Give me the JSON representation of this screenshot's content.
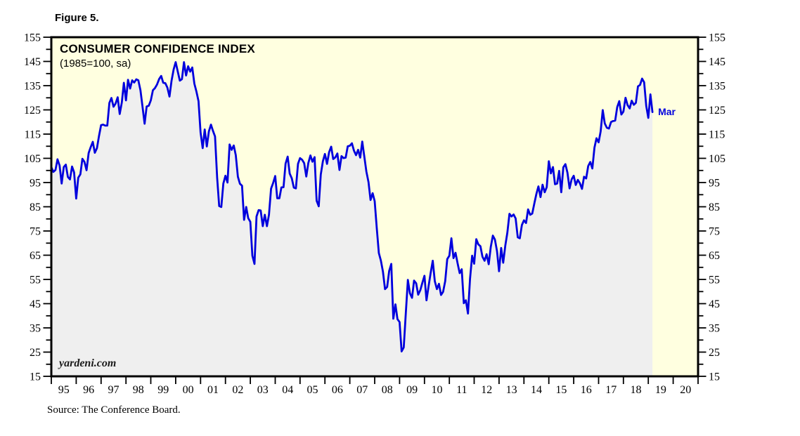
{
  "figure_label": "Figure 5.",
  "title": {
    "main": "CONSUMER CONFIDENCE INDEX",
    "sub": "(1985=100, sa)"
  },
  "watermark": "yardeni.com",
  "latest_label": "Mar",
  "source_note": "Source: The Conference Board.",
  "colors": {
    "plot_bg": "#ffffe0",
    "area_fill": "#efefef",
    "line": "#0000dd",
    "latest_label_color": "#0000dd",
    "axis": "#000000"
  },
  "chart_data": {
    "type": "line",
    "title": "CONSUMER CONFIDENCE INDEX",
    "subtitle": "(1985=100, sa)",
    "xlabel": "",
    "ylabel": "",
    "ylim": [
      15,
      155
    ],
    "y_tick_labels": [
      15,
      25,
      35,
      45,
      55,
      65,
      75,
      85,
      95,
      105,
      115,
      125,
      135,
      145,
      155
    ],
    "y_minor_step": 5,
    "x_range_years": [
      1995,
      2021
    ],
    "x_tick_labels": [
      "95",
      "96",
      "97",
      "98",
      "99",
      "00",
      "01",
      "02",
      "03",
      "04",
      "05",
      "06",
      "07",
      "08",
      "09",
      "10",
      "11",
      "12",
      "13",
      "14",
      "15",
      "16",
      "17",
      "18",
      "19",
      "20"
    ],
    "grid": false,
    "legend_position": "none",
    "series": [
      {
        "name": "Consumer Confidence Index (1985=100, sa)",
        "frequency": "monthly",
        "start": "1995-01",
        "end": "2019-03",
        "last_point_label": "Mar",
        "monthly": [
          {
            "year": 1995,
            "values": [
              101.4,
              99.4,
              100.2,
              104.6,
              102.0,
              94.6,
              101.4,
              102.4,
              97.3,
              96.3,
              101.6,
              99.2
            ]
          },
          {
            "year": 1996,
            "values": [
              88.4,
              97.0,
              98.4,
              104.8,
              103.5,
              100.1,
              107.2,
              109.6,
              111.8,
              107.3,
              109.2,
              114.2
            ]
          },
          {
            "year": 1997,
            "values": [
              118.7,
              118.9,
              118.5,
              118.5,
              127.9,
              129.9,
              126.3,
              127.6,
              130.2,
              123.3,
              128.1,
              136.2
            ]
          },
          {
            "year": 1998,
            "values": [
              128.9,
              137.4,
              133.8,
              137.2,
              136.3,
              137.6,
              137.2,
              133.1,
              126.4,
              119.3,
              126.4,
              126.7
            ]
          },
          {
            "year": 1999,
            "values": [
              128.9,
              133.1,
              134.0,
              135.5,
              137.7,
              139.0,
              136.2,
              136.0,
              134.2,
              130.5,
              137.0,
              141.7
            ]
          },
          {
            "year": 2000,
            "values": [
              144.7,
              140.8,
              137.1,
              137.7,
              144.7,
              139.2,
              143.0,
              140.8,
              142.5,
              135.8,
              132.6,
              128.6
            ]
          },
          {
            "year": 2001,
            "values": [
              115.7,
              109.2,
              116.9,
              109.9,
              116.1,
              118.9,
              116.3,
              114.0,
              97.0,
              85.3,
              84.9,
              94.6
            ]
          },
          {
            "year": 2002,
            "values": [
              97.8,
              95.0,
              110.7,
              108.5,
              110.3,
              106.3,
              97.4,
              94.5,
              93.7,
              79.6,
              84.9,
              80.3
            ]
          },
          {
            "year": 2003,
            "values": [
              78.8,
              64.8,
              61.4,
              81.0,
              83.6,
              83.5,
              77.0,
              81.7,
              77.0,
              81.7,
              92.5,
              94.8
            ]
          },
          {
            "year": 2004,
            "values": [
              97.7,
              88.5,
              88.5,
              93.0,
              93.1,
              102.8,
              105.7,
              98.7,
              96.7,
              92.9,
              92.6,
              102.7
            ]
          },
          {
            "year": 2005,
            "values": [
              105.1,
              104.4,
              103.0,
              97.5,
              103.1,
              106.2,
              103.6,
              105.5,
              87.5,
              85.2,
              98.3,
              103.8
            ]
          },
          {
            "year": 2006,
            "values": [
              106.8,
              102.7,
              107.5,
              109.8,
              104.7,
              105.4,
              107.0,
              100.2,
              105.9,
              105.1,
              105.3,
              110.0
            ]
          },
          {
            "year": 2007,
            "values": [
              110.2,
              111.2,
              108.2,
              106.3,
              108.5,
              105.3,
              111.9,
              105.6,
              99.5,
              95.2,
              87.8,
              90.6
            ]
          },
          {
            "year": 2008,
            "values": [
              87.3,
              76.4,
              65.9,
              62.8,
              58.1,
              51.0,
              51.9,
              58.5,
              61.4,
              38.8,
              44.7,
              38.6
            ]
          },
          {
            "year": 2009,
            "values": [
              37.4,
              25.3,
              26.9,
              40.8,
              54.8,
              49.3,
              47.4,
              54.5,
              53.4,
              48.7,
              50.6,
              53.6
            ]
          },
          {
            "year": 2010,
            "values": [
              56.5,
              46.4,
              52.3,
              57.7,
              62.7,
              54.3,
              51.0,
              53.2,
              48.6,
              49.9,
              54.3,
              63.4
            ]
          },
          {
            "year": 2011,
            "values": [
              64.8,
              72.0,
              63.8,
              66.0,
              61.7,
              57.6,
              59.2,
              45.2,
              46.4,
              40.9,
              55.2,
              64.8
            ]
          },
          {
            "year": 2012,
            "values": [
              61.5,
              71.6,
              69.5,
              68.7,
              64.4,
              62.7,
              65.4,
              61.3,
              68.4,
              73.1,
              71.5,
              66.7
            ]
          },
          {
            "year": 2013,
            "values": [
              58.4,
              68.0,
              61.9,
              69.0,
              74.3,
              82.1,
              81.0,
              81.8,
              80.2,
              72.4,
              72.0,
              77.5
            ]
          },
          {
            "year": 2014,
            "values": [
              79.4,
              78.3,
              83.9,
              81.7,
              82.2,
              86.4,
              90.3,
              93.4,
              89.0,
              94.1,
              91.0,
              93.1
            ]
          },
          {
            "year": 2015,
            "values": [
              103.8,
              98.8,
              101.4,
              94.3,
              94.6,
              99.8,
              91.0,
              101.3,
              102.6,
              99.1,
              92.6,
              96.3
            ]
          },
          {
            "year": 2016,
            "values": [
              97.8,
              94.0,
              96.1,
              94.7,
              92.4,
              97.4,
              96.7,
              101.8,
              103.5,
              100.8,
              109.4,
              113.3
            ]
          },
          {
            "year": 2017,
            "values": [
              111.6,
              116.1,
              124.9,
              119.4,
              117.6,
              117.3,
              120.0,
              120.4,
              120.6,
              126.2,
              128.6,
              123.1
            ]
          },
          {
            "year": 2018,
            "values": [
              124.3,
              130.0,
              127.0,
              125.6,
              128.8,
              127.1,
              127.9,
              134.7,
              135.3,
              137.9,
              136.4,
              126.6
            ]
          },
          {
            "year": 2019,
            "values": [
              121.7,
              131.4,
              124.1
            ]
          }
        ]
      }
    ]
  }
}
